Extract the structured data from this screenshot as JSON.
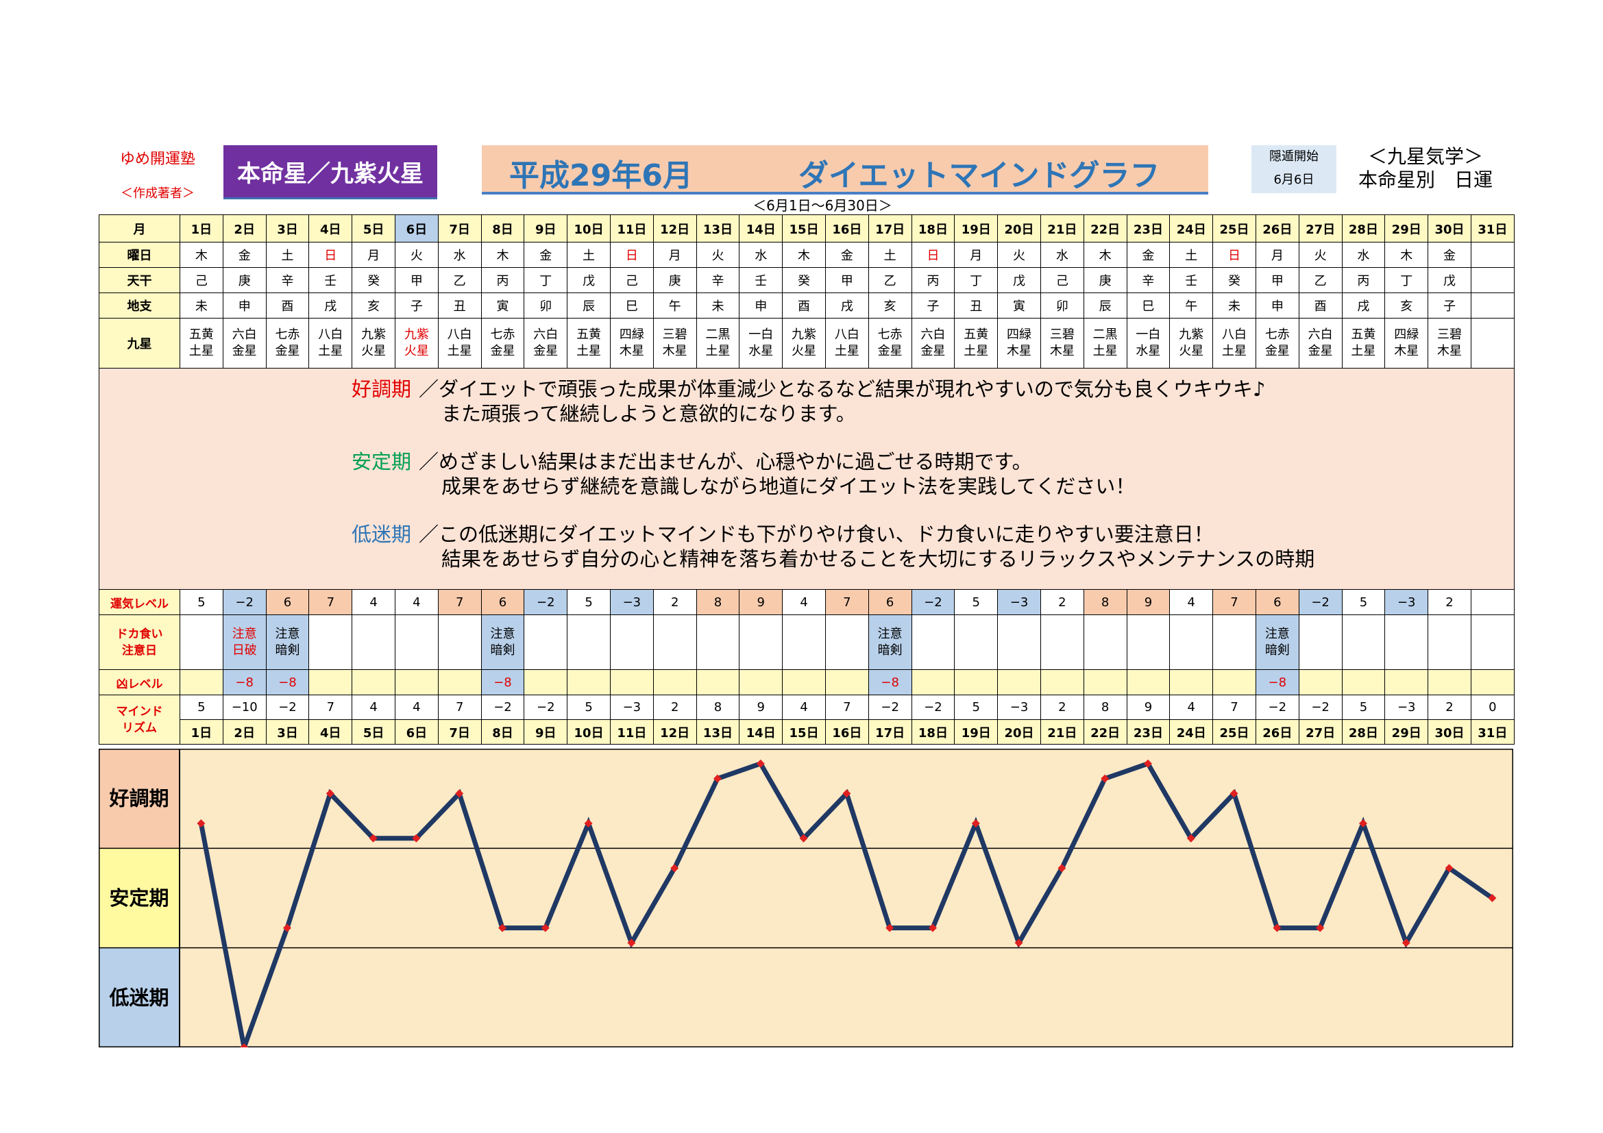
{
  "header": {
    "brand": "ゆめ開運塾",
    "author": "＜作成著者＞",
    "honmei": "本命星／九紫火星",
    "title_date": "平成29年6月",
    "title_name": "ダイエットマインドグラフ",
    "range": "＜6月1日～6月30日＞",
    "inton_label": "隠遁開始",
    "inton_date": "6月6日",
    "kyusei_line1": "＜九星気学＞",
    "kyusei_line2": "本命星別　日運"
  },
  "rows": {
    "month": "月",
    "weekday": "曜日",
    "tenkan": "天干",
    "chishi": "地支",
    "kyusei": "九星",
    "unki": "運気レベル",
    "dokagui": "ドカ食い\n注意日",
    "kyou": "凶レベル",
    "mind": "マインド\nリズム"
  },
  "days": [
    "1日",
    "2日",
    "3日",
    "4日",
    "5日",
    "6日",
    "7日",
    "8日",
    "9日",
    "10日",
    "11日",
    "12日",
    "13日",
    "14日",
    "15日",
    "16日",
    "17日",
    "18日",
    "19日",
    "20日",
    "21日",
    "22日",
    "23日",
    "24日",
    "25日",
    "26日",
    "27日",
    "28日",
    "29日",
    "30日",
    "31日"
  ],
  "weekdays": [
    "木",
    "金",
    "土",
    "日",
    "月",
    "火",
    "水",
    "木",
    "金",
    "土",
    "日",
    "月",
    "火",
    "水",
    "木",
    "金",
    "土",
    "日",
    "月",
    "火",
    "水",
    "木",
    "金",
    "土",
    "日",
    "月",
    "火",
    "水",
    "木",
    "金",
    ""
  ],
  "tenkan": [
    "己",
    "庚",
    "辛",
    "壬",
    "癸",
    "甲",
    "乙",
    "丙",
    "丁",
    "戊",
    "己",
    "庚",
    "辛",
    "壬",
    "癸",
    "甲",
    "乙",
    "丙",
    "丁",
    "戊",
    "己",
    "庚",
    "辛",
    "壬",
    "癸",
    "甲",
    "乙",
    "丙",
    "丁",
    "戊",
    ""
  ],
  "chishi": [
    "未",
    "申",
    "酉",
    "戌",
    "亥",
    "子",
    "丑",
    "寅",
    "卯",
    "辰",
    "巳",
    "午",
    "未",
    "申",
    "酉",
    "戌",
    "亥",
    "子",
    "丑",
    "寅",
    "卯",
    "辰",
    "巳",
    "午",
    "未",
    "申",
    "酉",
    "戌",
    "亥",
    "子",
    ""
  ],
  "kyusei": [
    "五黄\n土星",
    "六白\n金星",
    "七赤\n金星",
    "八白\n土星",
    "九紫\n火星",
    "九紫\n火星",
    "八白\n土星",
    "七赤\n金星",
    "六白\n金星",
    "五黄\n土星",
    "四緑\n木星",
    "三碧\n木星",
    "二黒\n土星",
    "一白\n水星",
    "九紫\n火星",
    "八白\n土星",
    "七赤\n金星",
    "六白\n金星",
    "五黄\n土星",
    "四緑\n木星",
    "三碧\n木星",
    "二黒\n土星",
    "一白\n水星",
    "九紫\n火星",
    "八白\n土星",
    "七赤\n金星",
    "六白\n金星",
    "五黄\n土星",
    "四緑\n木星",
    "三碧\n木星",
    ""
  ],
  "description": {
    "good_label": "好調期",
    "good_line1": "／ダイエットで頑張った成果が体重減少となるなど結果が現れやすいので気分も良くウキウキ♪",
    "good_line2": "また頑張って継続しようと意欲的になります。",
    "stable_label": "安定期",
    "stable_line1": "／めざましい結果はまだ出ませんが、心穏やかに過ごせる時期です。",
    "stable_line2": "成果をあせらず継続を意識しながら地道にダイエット法を実践してください！",
    "low_label": "低迷期",
    "low_line1": "／この低迷期にダイエットマインドも下がりやけ食い、ドカ食いに走りやすい要注意日！",
    "low_line2": "結果をあせらず自分の心と精神を落ち着かせることを大切にするリラックスやメンテナンスの時期"
  },
  "unki_levels": [
    "5",
    "−2",
    "6",
    "7",
    "4",
    "4",
    "7",
    "6",
    "−2",
    "5",
    "−3",
    "2",
    "8",
    "9",
    "4",
    "7",
    "6",
    "−2",
    "5",
    "−3",
    "2",
    "8",
    "9",
    "4",
    "7",
    "6",
    "−2",
    "5",
    "−3",
    "2",
    ""
  ],
  "dokagui_notes": [
    "",
    "注意\n日破",
    "注意\n暗剣",
    "",
    "",
    "",
    "",
    "注意\n暗剣",
    "",
    "",
    "",
    "",
    "",
    "",
    "",
    "",
    "注意\n暗剣",
    "",
    "",
    "",
    "",
    "",
    "",
    "",
    "",
    "注意\n暗剣",
    "",
    "",
    "",
    "",
    ""
  ],
  "kyou_levels": [
    "",
    "−8",
    "−8",
    "",
    "",
    "",
    "",
    "−8",
    "",
    "",
    "",
    "",
    "",
    "",
    "",
    "",
    "−8",
    "",
    "",
    "",
    "",
    "",
    "",
    "",
    "",
    "−8",
    "",
    "",
    "",
    "",
    ""
  ],
  "mind_values": [
    "5",
    "−10",
    "−2",
    "7",
    "4",
    "4",
    "7",
    "−2",
    "−2",
    "5",
    "−3",
    "2",
    "8",
    "9",
    "4",
    "7",
    "−2",
    "−2",
    "5",
    "−3",
    "2",
    "8",
    "9",
    "4",
    "7",
    "−2",
    "−2",
    "5",
    "−3",
    "2",
    "0"
  ],
  "colors": {
    "red": "#e00000",
    "blue_cell": "#b8d0ea",
    "pink_cell": "#f8cbad",
    "yellow_cell": "#fff9c4",
    "line": "#1f3864",
    "marker": "#e02020",
    "plot_bg": "#fce9c5"
  },
  "chart_data": {
    "type": "line",
    "title": "ダイエットマインドグラフ",
    "x": [
      "1日",
      "2日",
      "3日",
      "4日",
      "5日",
      "6日",
      "7日",
      "8日",
      "9日",
      "10日",
      "11日",
      "12日",
      "13日",
      "14日",
      "15日",
      "16日",
      "17日",
      "18日",
      "19日",
      "20日",
      "21日",
      "22日",
      "23日",
      "24日",
      "25日",
      "26日",
      "27日",
      "28日",
      "29日",
      "30日",
      "31日"
    ],
    "series": [
      {
        "values": [
          5,
          -10,
          -2,
          7,
          4,
          4,
          7,
          -2,
          -2,
          5,
          -3,
          2,
          8,
          9,
          4,
          7,
          -2,
          -2,
          5,
          -3,
          2,
          8,
          9,
          4,
          7,
          -2,
          -2,
          5,
          -3,
          2,
          0
        ]
      }
    ],
    "bands": [
      "好調期",
      "安定期",
      "低迷期"
    ],
    "ylim": [
      -10,
      10
    ],
    "grid": "bands"
  }
}
